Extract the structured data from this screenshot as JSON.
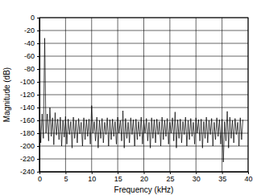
{
  "chart_data": {
    "type": "line",
    "color": "#000000",
    "grid": true,
    "x_label": "Frequency (kHz)",
    "y_label": "Magnitude (dB)",
    "xlim": [
      0,
      40
    ],
    "xticks": [
      0,
      5,
      10,
      15,
      20,
      25,
      30,
      35,
      40
    ],
    "ylim": [
      -240,
      0
    ],
    "yticks": [
      0,
      -20,
      -40,
      -60,
      -80,
      -100,
      -120,
      -140,
      -160,
      -180,
      -200,
      -220,
      -240
    ],
    "x": [
      0,
      0.25,
      0.5,
      0.75,
      1,
      1.25,
      1.5,
      1.75,
      2,
      2.25,
      2.5,
      2.75,
      3,
      3.25,
      3.5,
      3.75,
      4,
      4.25,
      4.5,
      4.75,
      5,
      5.25,
      5.5,
      5.75,
      6,
      6.25,
      6.5,
      6.75,
      7,
      7.25,
      7.5,
      7.75,
      8,
      8.25,
      8.5,
      8.75,
      9,
      9.25,
      9.5,
      9.75,
      10,
      10.25,
      10.5,
      10.75,
      11,
      11.25,
      11.5,
      11.75,
      12,
      12.25,
      12.5,
      12.75,
      13,
      13.25,
      13.5,
      13.75,
      14,
      14.25,
      14.5,
      14.75,
      15,
      15.25,
      15.5,
      15.75,
      16,
      16.25,
      16.5,
      16.75,
      17,
      17.25,
      17.5,
      17.75,
      18,
      18.25,
      18.5,
      18.75,
      19,
      19.25,
      19.5,
      19.75,
      20,
      20.25,
      20.5,
      20.75,
      21,
      21.25,
      21.5,
      21.75,
      22,
      22.25,
      22.5,
      22.75,
      23,
      23.25,
      23.5,
      23.75,
      24,
      24.25,
      24.5,
      24.75,
      25,
      25.25,
      25.5,
      25.75,
      26,
      26.25,
      26.5,
      26.75,
      27,
      27.25,
      27.5,
      27.75,
      28,
      28.25,
      28.5,
      28.75,
      29,
      29.25,
      29.5,
      29.75,
      30,
      30.25,
      30.5,
      30.75,
      31,
      31.25,
      31.5,
      31.75,
      32,
      32.25,
      32.5,
      32.75,
      33,
      33.25,
      33.5,
      33.75,
      34,
      34.25,
      34.5,
      34.75,
      35,
      35.25,
      35.5,
      35.75,
      36,
      36.25,
      36.5,
      36.75,
      37,
      37.25,
      37.5,
      37.75,
      38,
      38.25,
      38.5,
      38.75,
      39
    ],
    "values": [
      -140,
      -195,
      -150,
      -188,
      -32,
      -180,
      -150,
      -192,
      -140,
      -185,
      -156,
      -198,
      -148,
      -183,
      -158,
      -190,
      -155,
      -200,
      -160,
      -186,
      -154,
      -197,
      -158,
      -182,
      -162,
      -203,
      -155,
      -188,
      -160,
      -195,
      -157,
      -181,
      -163,
      -200,
      -156,
      -190,
      -159,
      -185,
      -158,
      -197,
      -137,
      -180,
      -162,
      -192,
      -155,
      -203,
      -160,
      -188,
      -157,
      -195,
      -163,
      -182,
      -156,
      -200,
      -159,
      -190,
      -158,
      -185,
      -162,
      -197,
      -155,
      -180,
      -160,
      -192,
      -145,
      -203,
      -157,
      -188,
      -163,
      -195,
      -156,
      -182,
      -159,
      -200,
      -158,
      -190,
      -162,
      -185,
      -155,
      -197,
      -160,
      -180,
      -157,
      -192,
      -163,
      -203,
      -156,
      -188,
      -159,
      -195,
      -158,
      -182,
      -162,
      -200,
      -155,
      -190,
      -160,
      -185,
      -157,
      -197,
      -163,
      -180,
      -156,
      -192,
      -147,
      -203,
      -159,
      -188,
      -158,
      -195,
      -162,
      -182,
      -155,
      -200,
      -160,
      -190,
      -157,
      -185,
      -163,
      -197,
      -156,
      -180,
      -159,
      -192,
      -158,
      -203,
      -162,
      -188,
      -155,
      -195,
      -160,
      -182,
      -157,
      -200,
      -163,
      -190,
      -156,
      -185,
      -159,
      -197,
      -158,
      -225,
      -162,
      -192,
      -146,
      -203,
      -155,
      -188,
      -160,
      -195,
      -157,
      -182,
      -163,
      -200,
      -156,
      -190,
      -159
    ]
  }
}
